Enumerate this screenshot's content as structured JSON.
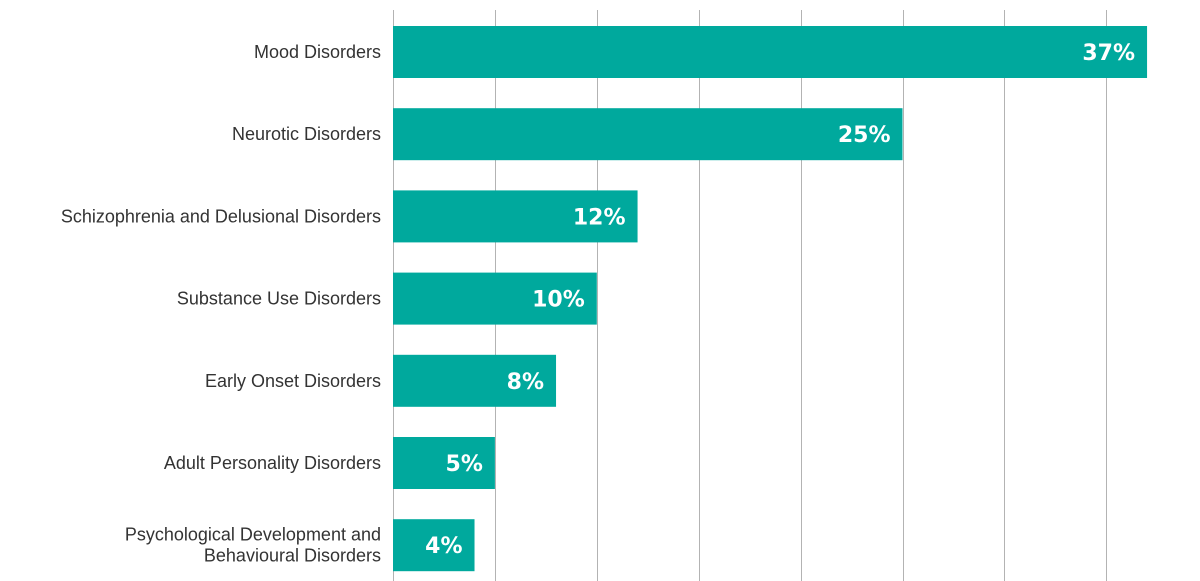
{
  "chart_data": {
    "type": "bar",
    "orientation": "horizontal",
    "categories": [
      [
        "Mood Disorders"
      ],
      [
        "Neurotic Disorders"
      ],
      [
        "Schizophrenia and Delusional Disorders"
      ],
      [
        "Substance Use Disorders"
      ],
      [
        "Early Onset Disorders"
      ],
      [
        "Adult Personality Disorders"
      ],
      [
        "Psychological Development and",
        "Behavioural Disorders"
      ]
    ],
    "values": [
      37,
      25,
      12,
      10,
      8,
      5,
      4
    ],
    "value_labels": [
      "37%",
      "25%",
      "12%",
      "10%",
      "8%",
      "5%",
      "4%"
    ],
    "xlim": [
      0,
      37
    ],
    "x_gridlines": [
      0,
      5,
      10,
      15,
      20,
      25,
      30,
      35
    ],
    "grid": true,
    "legend": "none",
    "bar_color": "#00a99d",
    "label_color": "#333333",
    "value_label_color": "#ffffff",
    "grid_color": "#b3b3b3"
  }
}
